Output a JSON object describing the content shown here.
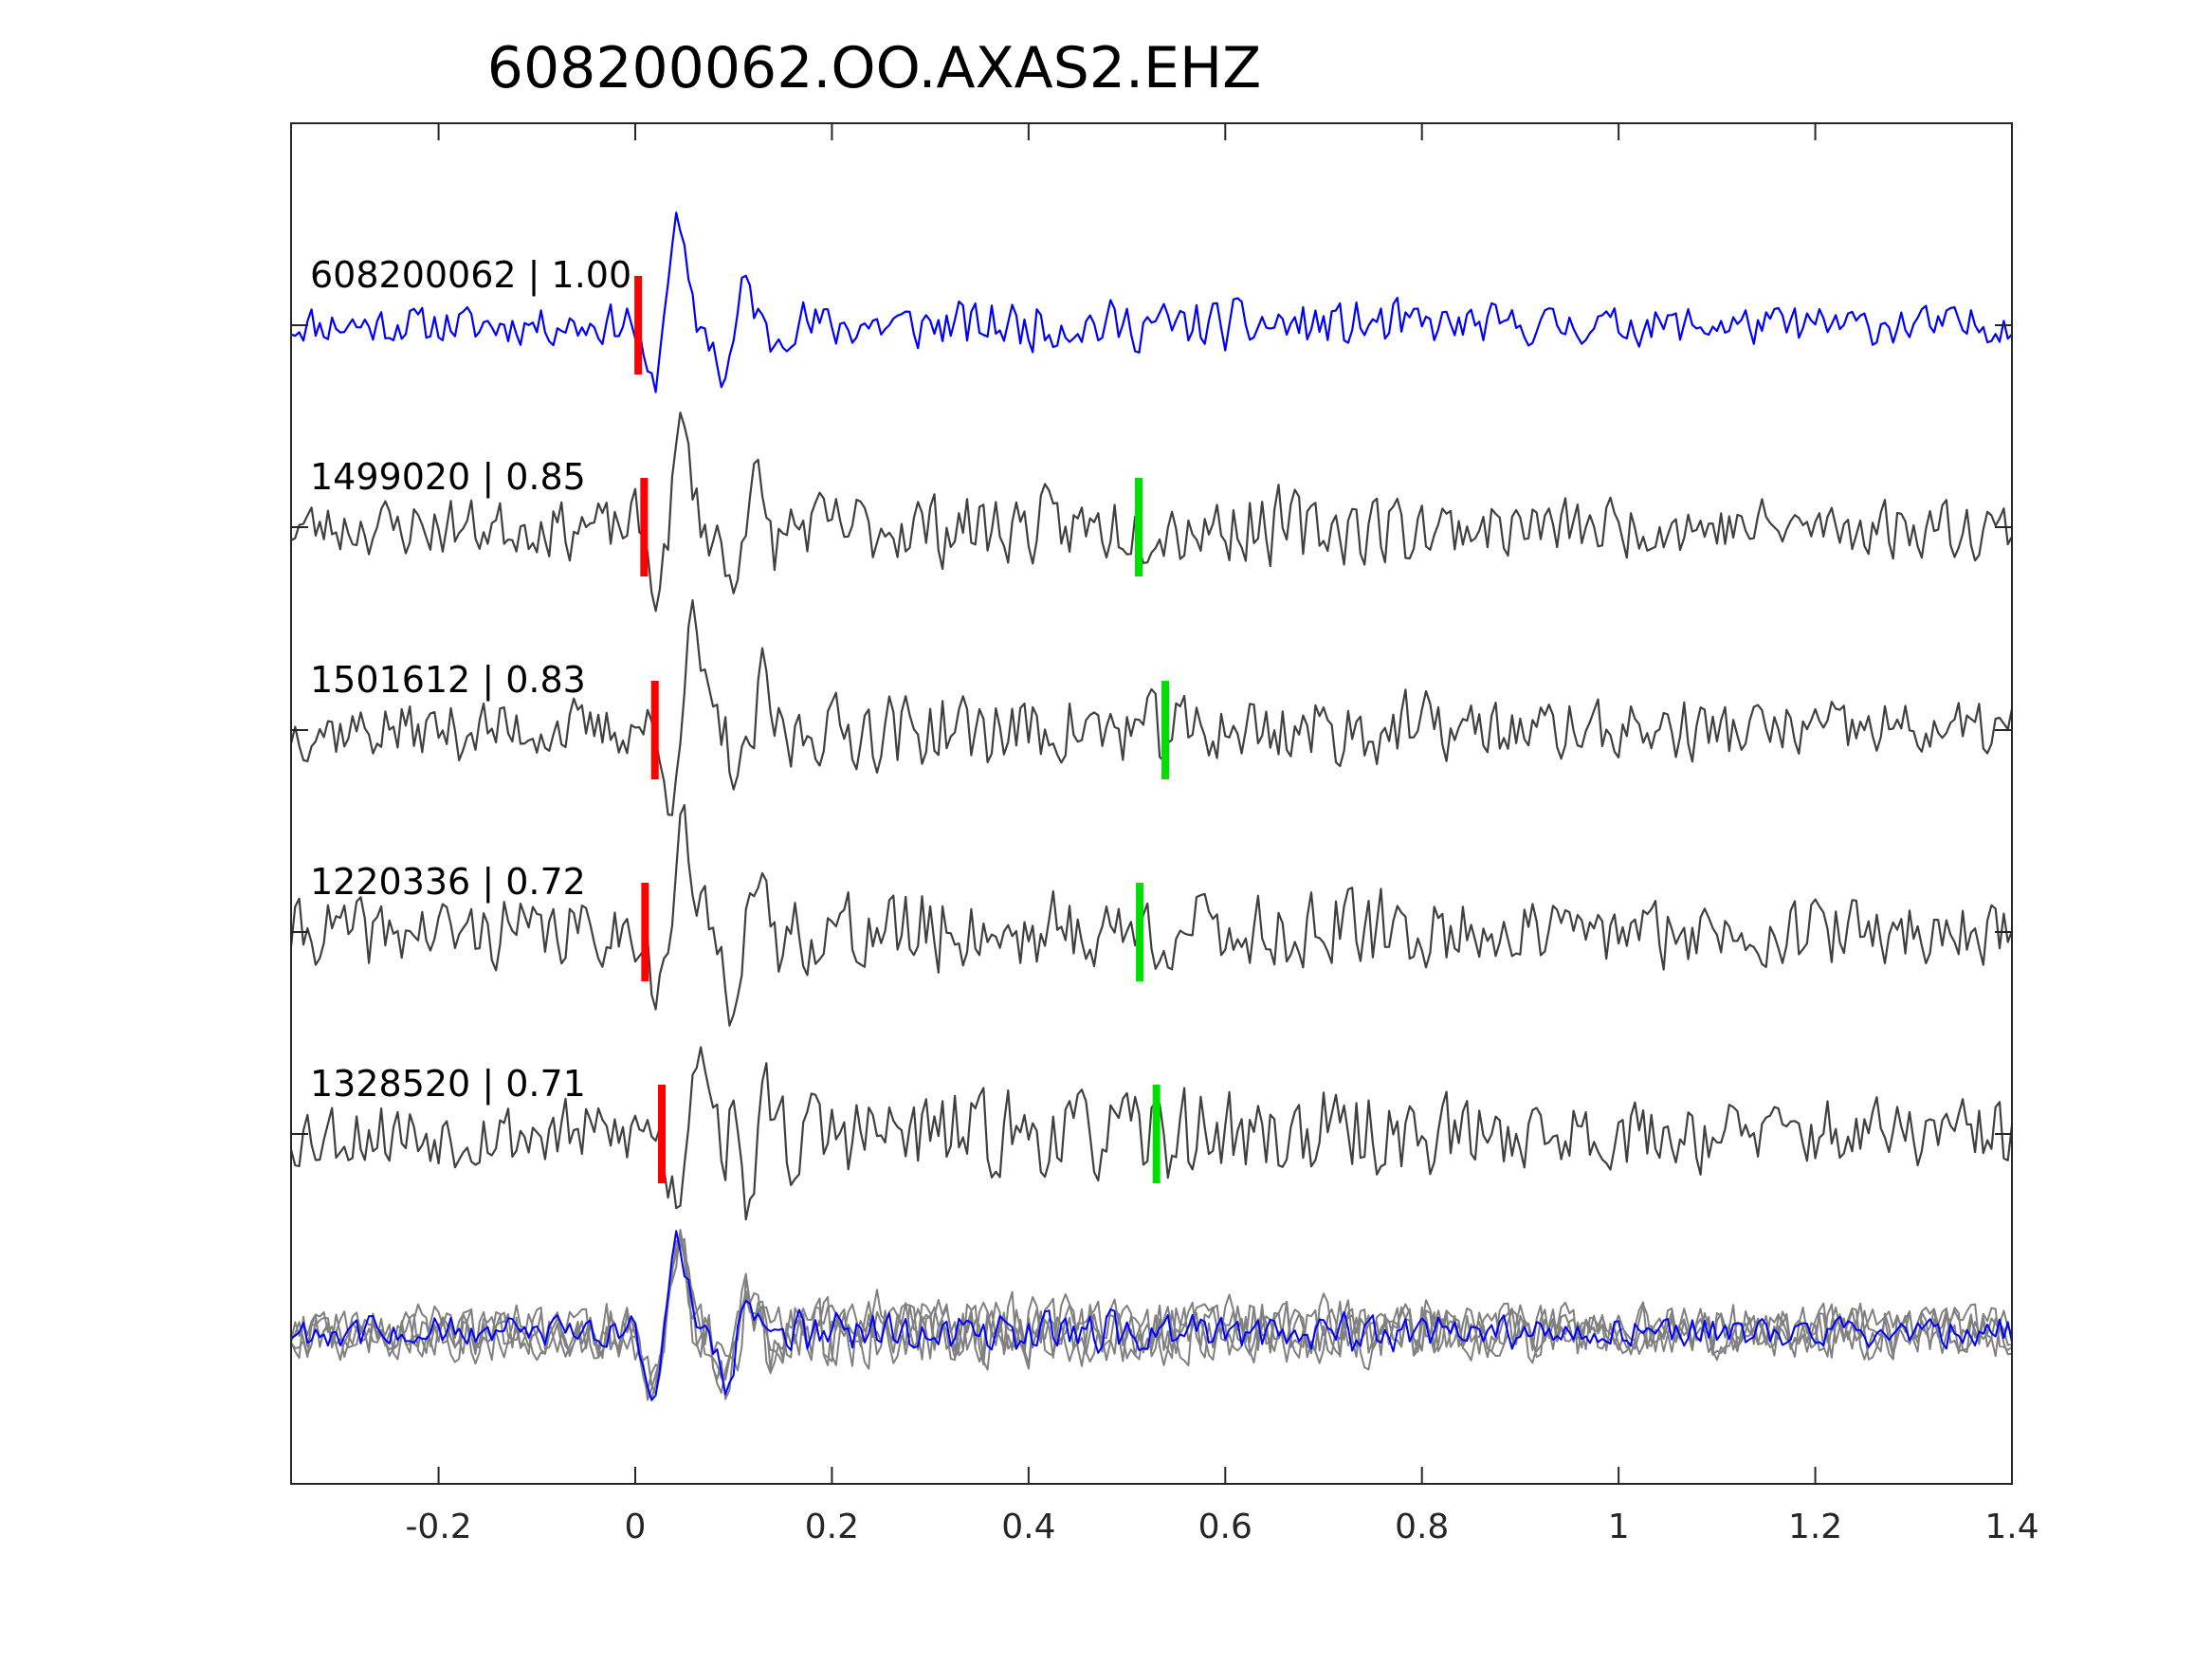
{
  "chart_data": {
    "type": "line",
    "title": "608200062.OO.AXAS2.EHZ",
    "xlabel": "",
    "ylabel": "",
    "xlim": [
      -0.35,
      1.4
    ],
    "xticks": [
      -0.2,
      0,
      0.2,
      0.4,
      0.6,
      0.8,
      1,
      1.2,
      1.4
    ],
    "xtick_labels": [
      "-0.2",
      "0",
      "0.2",
      "0.4",
      "0.6",
      "0.8",
      "1",
      "1.2",
      "1.4"
    ],
    "grid": false,
    "colors": {
      "template": "#0000ff",
      "match": "#404040",
      "stack_match": "#808080",
      "p_pick": "#ff0000",
      "s_pick": "#00e000",
      "axes": "#262626"
    },
    "series": [
      {
        "name": "608200062",
        "label": "608200062 | 1.00",
        "cc": 1.0,
        "color": "template",
        "p_pick": 0.003,
        "s_pick": null,
        "seed": 11,
        "noise": 0.34,
        "phase_shift": 0.0
      },
      {
        "name": "1499020",
        "label": "1499020 | 0.85",
        "cc": 0.85,
        "color": "match",
        "p_pick": 0.009,
        "s_pick": 0.512,
        "seed": 23,
        "noise": 0.5,
        "phase_shift": 0.0
      },
      {
        "name": "1501612",
        "label": "1501612 | 0.83",
        "cc": 0.83,
        "color": "match",
        "p_pick": 0.02,
        "s_pick": 0.539,
        "seed": 37,
        "noise": 0.52,
        "phase_shift": 0.0
      },
      {
        "name": "1220336",
        "label": "1220336 | 0.72",
        "cc": 0.72,
        "color": "match",
        "p_pick": 0.01,
        "s_pick": 0.513,
        "seed": 41,
        "noise": 0.58,
        "phase_shift": 0.0
      },
      {
        "name": "1328520",
        "label": "1328520 | 0.71",
        "cc": 0.71,
        "color": "match",
        "p_pick": 0.027,
        "s_pick": 0.53,
        "seed": 53,
        "noise": 0.62,
        "phase_shift": 0.0
      }
    ],
    "stack": {
      "description_visible": false,
      "overlay_of": [
        "608200062",
        "1499020",
        "1501612",
        "1220336",
        "1328520"
      ]
    }
  }
}
